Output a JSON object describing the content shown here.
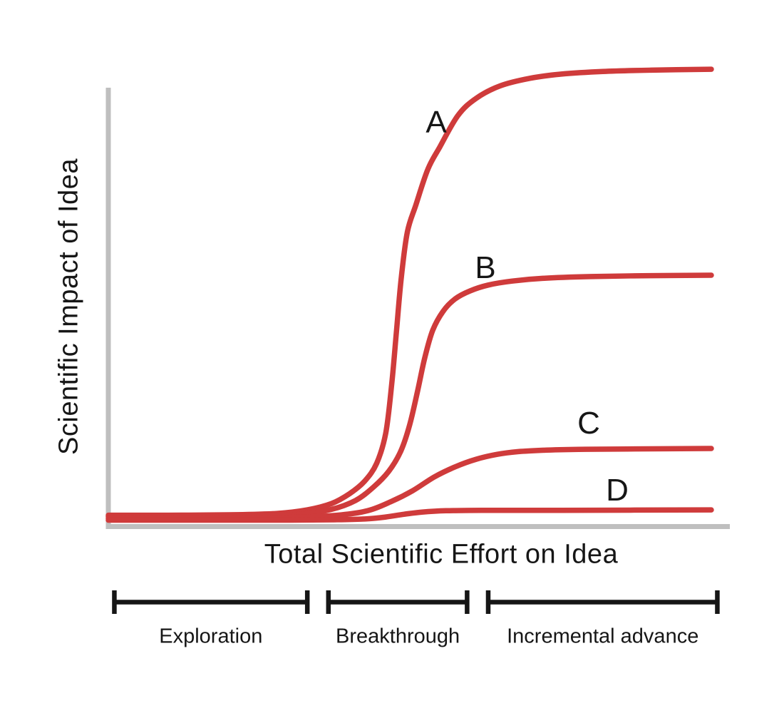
{
  "colors": {
    "curve_red": "#cf3b3b",
    "axis_gray": "#bfbfbf",
    "text_black": "#161616"
  },
  "chart_data": {
    "type": "line",
    "title": "",
    "xlabel": "Total Scientific Effort on Idea",
    "ylabel": "Scientific Impact of Idea",
    "x_range": [
      0,
      100
    ],
    "y_range": [
      0,
      1.05
    ],
    "grid": false,
    "tick_labels": "none (qualitative sketch, unlabeled axes)",
    "legend_position": "inline labels next to curves",
    "line_color": "#cf3b3b",
    "axis_color": "#bfbfbf",
    "series": [
      {
        "label": "A",
        "plateau": 1.0,
        "points": [
          [
            0,
            0.007
          ],
          [
            10,
            0.007
          ],
          [
            20,
            0.008
          ],
          [
            28,
            0.011
          ],
          [
            33,
            0.019
          ],
          [
            37,
            0.033
          ],
          [
            40,
            0.055
          ],
          [
            42.5,
            0.083
          ],
          [
            44.5,
            0.123
          ],
          [
            46,
            0.19
          ],
          [
            47,
            0.3
          ],
          [
            47.8,
            0.42
          ],
          [
            48.6,
            0.54
          ],
          [
            49.6,
            0.64
          ],
          [
            51,
            0.7
          ],
          [
            53,
            0.78
          ],
          [
            55,
            0.83
          ],
          [
            58,
            0.9
          ],
          [
            61,
            0.938
          ],
          [
            65,
            0.966
          ],
          [
            70,
            0.983
          ],
          [
            75,
            0.992
          ],
          [
            82,
            0.998
          ],
          [
            90,
            1.001
          ],
          [
            100,
            1.003
          ]
        ]
      },
      {
        "label": "B",
        "plateau": 0.54,
        "points": [
          [
            0,
            0.004
          ],
          [
            12,
            0.004
          ],
          [
            24,
            0.005
          ],
          [
            32,
            0.009
          ],
          [
            37,
            0.02
          ],
          [
            41,
            0.04
          ],
          [
            44,
            0.07
          ],
          [
            46.5,
            0.105
          ],
          [
            48.5,
            0.15
          ],
          [
            50,
            0.21
          ],
          [
            51.3,
            0.285
          ],
          [
            52.5,
            0.36
          ],
          [
            53.8,
            0.42
          ],
          [
            55.5,
            0.462
          ],
          [
            57.5,
            0.49
          ],
          [
            60,
            0.508
          ],
          [
            63,
            0.521
          ],
          [
            67,
            0.53
          ],
          [
            72,
            0.536
          ],
          [
            80,
            0.54
          ],
          [
            90,
            0.542
          ],
          [
            100,
            0.543
          ]
        ]
      },
      {
        "label": "C",
        "plateau": 0.155,
        "points": [
          [
            0,
            0.0
          ],
          [
            15,
            0.0
          ],
          [
            30,
            0.002
          ],
          [
            38,
            0.007
          ],
          [
            43,
            0.017
          ],
          [
            47,
            0.038
          ],
          [
            50.5,
            0.062
          ],
          [
            54,
            0.092
          ],
          [
            57.5,
            0.115
          ],
          [
            61,
            0.132
          ],
          [
            64.5,
            0.143
          ],
          [
            68,
            0.149
          ],
          [
            72,
            0.152
          ],
          [
            78,
            0.154
          ],
          [
            86,
            0.155
          ],
          [
            100,
            0.156
          ]
        ]
      },
      {
        "label": "D",
        "plateau": 0.02,
        "points": [
          [
            0,
            -0.004
          ],
          [
            15,
            -0.004
          ],
          [
            30,
            -0.004
          ],
          [
            38,
            -0.003
          ],
          [
            43,
            -0.001
          ],
          [
            46,
            0.003
          ],
          [
            49,
            0.009
          ],
          [
            52,
            0.014
          ],
          [
            56,
            0.017
          ],
          [
            62,
            0.018
          ],
          [
            75,
            0.018
          ],
          [
            100,
            0.019
          ]
        ]
      }
    ],
    "phases": [
      {
        "label": "Exploration",
        "x_start": 1,
        "x_end": 33
      },
      {
        "label": "Breakthrough",
        "x_start": 36.5,
        "x_end": 59.5
      },
      {
        "label": "Incremental advance",
        "x_start": 63,
        "x_end": 101
      }
    ]
  }
}
